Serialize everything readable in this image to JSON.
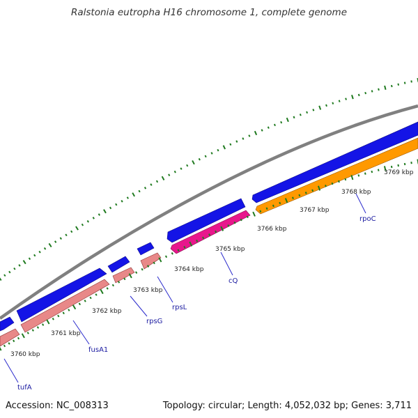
{
  "title": "Ralstonia eutropha H16 chromosome 1, complete genome",
  "footer": {
    "accession": "Accession: NC_008313",
    "summary": "Topology: circular; Length: 4,052,032 bp; Genes: 3,711"
  },
  "colors": {
    "backbone": "#808080",
    "forward_gene": "#1414e6",
    "reverse_gene": "#e88888",
    "highlight_magenta": "#e8168c",
    "highlight_orange": "#ff9900",
    "ticks": "#1f7a1f",
    "gene_label": "#1a1aa0",
    "leader_line": "#2a2acc"
  },
  "ticks": [
    {
      "label": "3760 kbp"
    },
    {
      "label": "3761 kbp"
    },
    {
      "label": "3762 kbp"
    },
    {
      "label": "3763 kbp"
    },
    {
      "label": "3764 kbp"
    },
    {
      "label": "3765 kbp"
    },
    {
      "label": "3766 kbp"
    },
    {
      "label": "3767 kbp"
    },
    {
      "label": "3768 kbp"
    },
    {
      "label": "3769 kbp"
    }
  ],
  "genes": [
    {
      "label": "tufA"
    },
    {
      "label": "fusA1"
    },
    {
      "label": "rpsG"
    },
    {
      "label": "rpsL"
    },
    {
      "label": "cQ"
    },
    {
      "label": "rpoC"
    }
  ]
}
